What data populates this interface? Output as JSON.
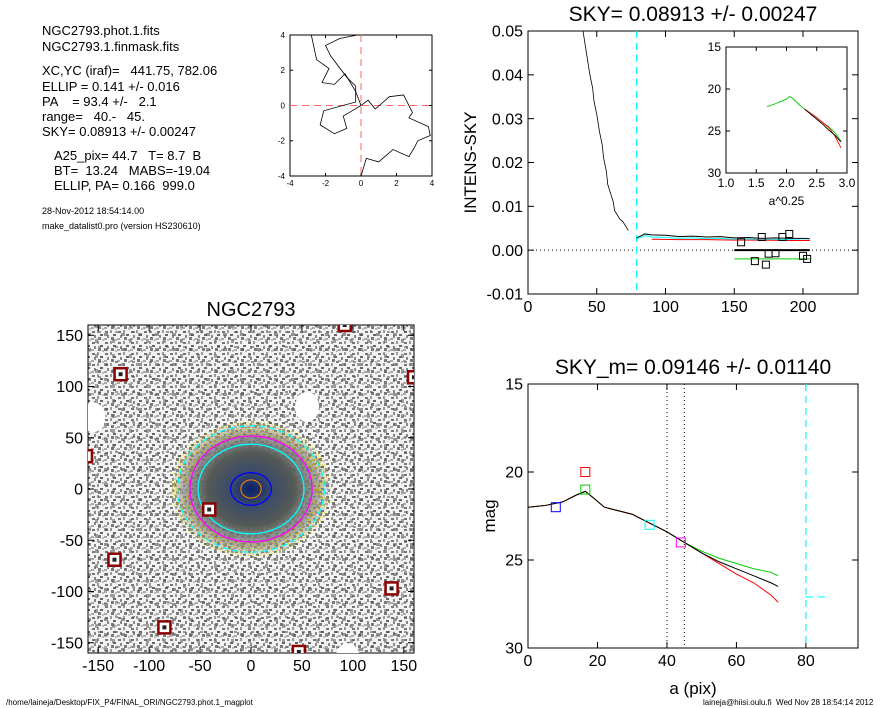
{
  "info": {
    "file1": "NGC2793.phot.1.fits",
    "file2": "NGC2793.1.finmask.fits",
    "xcyc": "XC,YC (iraf)=   441.75, 782.06",
    "ellip": "ELLIP = 0.141 +/- 0.016",
    "pa": "PA    = 93.4 +/-   2.1",
    "range": "range=   40.-   45.",
    "sky": "SKY= 0.08913 +/- 0.00247",
    "a25": "A25_pix= 44.7   T= 8.7  B",
    "bt": "BT=  13.24   MABS=-19.04",
    "ellip_pa": "ELLIP, PA= 0.166  999.0",
    "date": "28-Nov-2012 18:54:14.00",
    "program": "make_datalist0.pro (version HS230610)"
  },
  "footer": {
    "path": "/home/laineja/Desktop/FIX_P4/FINAL_ORI/NGC2793.phot.1_magplot",
    "user": "laineja@hiisi.oulu.fi  Wed Nov 28 18:54:14 2012"
  },
  "colors": {
    "black": "#000000",
    "red": "#ff0000",
    "green": "#00cc00",
    "cyan": "#00ffff",
    "blue": "#0000ff",
    "magenta": "#ff00ff"
  },
  "chart_data": [
    {
      "id": "center",
      "type": "line",
      "title": "",
      "xlim": [
        -4,
        4
      ],
      "ylim": [
        -4,
        4
      ],
      "xticks": [
        -4,
        -2,
        0,
        2,
        4
      ],
      "yticks": [
        -4,
        -2,
        0,
        2,
        4
      ],
      "tick_labels_x": [
        "-4",
        "-2",
        "0",
        "2",
        "4"
      ],
      "tick_labels_y": [
        "-4",
        "-2",
        "0",
        "2",
        "4"
      ],
      "series": [
        {
          "x": [
            -2.8,
            -2.5,
            -1.8,
            -2.2,
            -1.5,
            -0.9,
            -0.3,
            0.0,
            0.4,
            0.8,
            1.6,
            2.4,
            2.9,
            2.7,
            3.8,
            3.9,
            3.2,
            3.0,
            2.7,
            1.8,
            1.0,
            0.3,
            0.0
          ],
          "y": [
            4.0,
            2.6,
            2.1,
            1.3,
            1.2,
            1.8,
            0.8,
            0.0,
            0.3,
            -0.2,
            0.5,
            0.6,
            -0.4,
            -0.7,
            -1.2,
            -1.7,
            -2.0,
            -2.4,
            -2.9,
            -2.5,
            -3.2,
            -3.0,
            -4.0
          ]
        },
        {
          "x": [
            0.0,
            -0.5,
            -1.0,
            -0.8,
            -1.5,
            -2.3,
            -2.1,
            -0.3,
            -0.3,
            -0.8,
            -1.7,
            -2.0,
            -1.2,
            -0.2
          ],
          "y": [
            0.0,
            -0.3,
            -0.6,
            -1.3,
            -1.6,
            -1.1,
            -0.3,
            0.2,
            1.1,
            1.6,
            2.8,
            3.4,
            3.8,
            4.0
          ]
        }
      ]
    },
    {
      "id": "sky",
      "type": "line",
      "title": "SKY= 0.08913 +/- 0.00247",
      "ylabel": "INTENS-SKY",
      "xlim": [
        0,
        240
      ],
      "ylim": [
        -0.01,
        0.05
      ],
      "xticks": [
        0,
        50,
        100,
        150,
        200
      ],
      "yticks": [
        -0.01,
        0.0,
        0.01,
        0.02,
        0.03,
        0.04,
        0.05
      ],
      "tick_labels_x": [
        "0",
        "50",
        "100",
        "150",
        "200"
      ],
      "tick_labels_y": [
        "-0.01",
        "0.00",
        "0.01",
        "0.02",
        "0.03",
        "0.04",
        "0.05"
      ],
      "profile": {
        "x": [
          40,
          42,
          45,
          47,
          48,
          50,
          52,
          54,
          55,
          57,
          58,
          60,
          62,
          63,
          65,
          67,
          69,
          71,
          73
        ],
        "y": [
          0.05,
          0.046,
          0.04,
          0.037,
          0.034,
          0.031,
          0.027,
          0.024,
          0.021,
          0.018,
          0.015,
          0.013,
          0.011,
          0.009,
          0.008,
          0.007,
          0.0065,
          0.0055,
          0.0045
        ]
      },
      "sky_series": [
        {
          "color": "cyan",
          "x": [
            79,
            85,
            90,
            100,
            110,
            120,
            130,
            140,
            150,
            160,
            170,
            180,
            190,
            200,
            205
          ],
          "y": [
            0.0025,
            0.0033,
            0.003,
            0.0029,
            0.0027,
            0.0028,
            0.0026,
            0.0027,
            0.0025,
            0.0026,
            0.0024,
            0.0025,
            0.0024,
            0.0023,
            0.0022
          ]
        },
        {
          "color": "black",
          "x": [
            79,
            85,
            90,
            100,
            110,
            120,
            130,
            140,
            150,
            160,
            170,
            180,
            190,
            200,
            205
          ],
          "y": [
            0.0028,
            0.0037,
            0.0035,
            0.0034,
            0.0031,
            0.0032,
            0.003,
            0.0031,
            0.0028,
            0.0029,
            0.0027,
            0.0028,
            0.0027,
            0.0027,
            0.0026
          ]
        },
        {
          "color": "red",
          "x": [
            90,
            110,
            130,
            150,
            170,
            190,
            205
          ],
          "y": [
            0.0025,
            0.0024,
            0.0024,
            0.0023,
            0.0023,
            0.0022,
            0.0022
          ]
        }
      ],
      "sky_level_black": {
        "x": [
          150,
          205
        ],
        "y": 0.0
      },
      "sky_level_green": {
        "x": [
          150,
          205
        ],
        "y": -0.002
      },
      "squares": {
        "x": [
          155,
          170,
          175,
          180,
          185,
          190,
          200,
          173,
          165,
          203
        ],
        "y": [
          0.0018,
          0.003,
          -0.0008,
          -0.0007,
          0.003,
          0.0037,
          -0.0013,
          -0.0033,
          -0.0025,
          -0.002
        ]
      },
      "vline_cyan": 79
    },
    {
      "id": "inset",
      "type": "line",
      "xlabel": "a^0.25",
      "xlim": [
        1.0,
        3.0
      ],
      "ylim": [
        30,
        15
      ],
      "xticks": [
        1.0,
        1.5,
        2.0,
        2.5,
        3.0
      ],
      "yticks": [
        15,
        20,
        25,
        30
      ],
      "tick_labels_x": [
        "1.0",
        "1.5",
        "2.0",
        "2.5",
        "3.0"
      ],
      "tick_labels_y": [
        "15",
        "20",
        "25",
        "30"
      ],
      "series": [
        {
          "color": "green",
          "x": [
            1.68,
            1.8,
            1.9,
            2.0,
            2.05,
            2.1,
            2.2,
            2.3,
            2.4,
            2.5,
            2.6,
            2.7,
            2.8,
            2.9
          ],
          "y": [
            22.1,
            21.8,
            21.5,
            21.2,
            20.9,
            21.1,
            21.8,
            22.4,
            22.9,
            23.4,
            24.0,
            24.5,
            25.2,
            26.2
          ]
        },
        {
          "color": "red",
          "x": [
            2.3,
            2.4,
            2.5,
            2.6,
            2.7,
            2.8,
            2.9
          ],
          "y": [
            22.4,
            22.9,
            23.4,
            24.0,
            24.6,
            25.6,
            27.0
          ]
        },
        {
          "color": "black",
          "x": [
            2.3,
            2.4,
            2.5,
            2.6,
            2.7,
            2.8,
            2.9
          ],
          "y": [
            22.4,
            23.0,
            23.6,
            24.2,
            24.9,
            25.5,
            26.3
          ]
        }
      ]
    },
    {
      "id": "image",
      "type": "scatter",
      "title": "NGC2793",
      "xlim": [
        -160,
        160
      ],
      "ylim": [
        -160,
        160
      ],
      "xticks": [
        -150,
        -100,
        -50,
        0,
        50,
        100,
        150
      ],
      "yticks": [
        -150,
        -100,
        -50,
        0,
        50,
        100,
        150
      ],
      "tick_labels_x": [
        "-150",
        "-100",
        "-50",
        "0",
        "50",
        "100",
        "150"
      ],
      "tick_labels_y": [
        "-150",
        "-100",
        "-50",
        "0",
        "50",
        "100",
        "150"
      ],
      "masked_stars": {
        "x": [
          -162,
          -128,
          -134,
          -85,
          -41,
          92,
          138,
          47,
          160
        ],
        "y": [
          32,
          112,
          -69,
          -135,
          -20,
          160,
          -97,
          -159,
          109
        ]
      },
      "ellipses": [
        {
          "a": 72,
          "b": 62,
          "color": "cyan",
          "dashed": true
        },
        {
          "a": 60,
          "b": 52,
          "color": "magenta",
          "dashed": false
        },
        {
          "a": 52,
          "b": 44,
          "color": "cyan",
          "dashed": false
        },
        {
          "a": 20,
          "b": 16,
          "color": "blue",
          "dashed": false
        }
      ]
    },
    {
      "id": "mag",
      "type": "line",
      "title": "SKY_m=  0.09146 +/- 0.01140",
      "xlabel": "a (pix)",
      "ylabel": "mag",
      "xlim": [
        0,
        95
      ],
      "ylim": [
        30,
        15
      ],
      "xticks": [
        0,
        20,
        40,
        60,
        80
      ],
      "yticks": [
        15,
        20,
        25,
        30
      ],
      "tick_labels_x": [
        "0",
        "20",
        "40",
        "60",
        "80"
      ],
      "tick_labels_y": [
        "15",
        "20",
        "25",
        "30"
      ],
      "series": [
        {
          "color": "black",
          "x": [
            0,
            5,
            10,
            14,
            16.5,
            19,
            22,
            26,
            30,
            35,
            40,
            45,
            50,
            55,
            60,
            65,
            70,
            72
          ],
          "y": [
            22.0,
            21.9,
            21.7,
            21.3,
            21.1,
            21.5,
            22.0,
            22.2,
            22.4,
            22.9,
            23.4,
            24.0,
            24.6,
            25.1,
            25.5,
            25.9,
            26.3,
            26.5
          ]
        },
        {
          "color": "red",
          "x": [
            0,
            5,
            10,
            14,
            16.5,
            19,
            22,
            26,
            30,
            35,
            40,
            45,
            50,
            55,
            60,
            65,
            70,
            72
          ],
          "y": [
            22.0,
            21.9,
            21.7,
            21.3,
            21.1,
            21.5,
            22.0,
            22.2,
            22.4,
            22.9,
            23.4,
            24.0,
            24.6,
            25.2,
            25.8,
            26.3,
            27.0,
            27.4
          ]
        },
        {
          "color": "green",
          "x": [
            0,
            5,
            10,
            14,
            16.5,
            19,
            22,
            26,
            30,
            35,
            40,
            45,
            50,
            55,
            60,
            65,
            70,
            72
          ],
          "y": [
            22.0,
            21.9,
            21.7,
            21.3,
            21.1,
            21.5,
            22.0,
            22.2,
            22.4,
            22.9,
            23.4,
            24.0,
            24.5,
            24.9,
            25.2,
            25.5,
            25.7,
            25.9
          ]
        }
      ],
      "markers": [
        {
          "color": "blue",
          "x": 8,
          "y": 22.0
        },
        {
          "color": "red",
          "x": 16.5,
          "y": 20.0
        },
        {
          "color": "green",
          "x": 16.5,
          "y": 21.0
        },
        {
          "color": "cyan",
          "x": 35,
          "y": 23.0
        },
        {
          "color": "magenta",
          "x": 44,
          "y": 24.0
        }
      ],
      "vlines_dotted": [
        40,
        45
      ],
      "vline_cyan": 80,
      "sky_mag_cyan": {
        "x": [
          80,
          87
        ],
        "y": 27.1
      }
    }
  ]
}
